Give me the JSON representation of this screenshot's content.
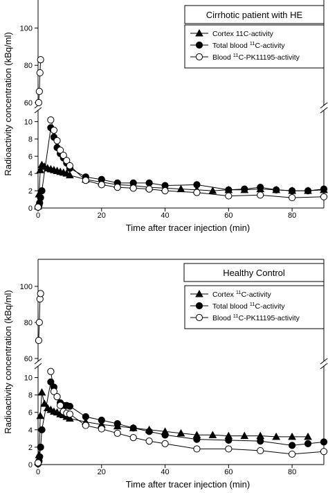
{
  "chart_data": [
    {
      "type": "line",
      "panel_title": "Cirrhotic patient with HE",
      "xlabel": "Time after tracer injection (min)",
      "ylabel": "Radioactivity concentration (kBq/ml)",
      "xlim": [
        0,
        90
      ],
      "x_ticks": [
        0,
        20,
        40,
        60,
        80
      ],
      "y_lower_range": [
        0,
        11
      ],
      "y_lower_ticks": [
        0,
        2,
        4,
        6,
        8,
        10
      ],
      "y_upper_range": [
        60,
        115
      ],
      "y_upper_ticks": [
        60,
        80,
        100
      ],
      "axis_break": true,
      "legend_position": "top-right",
      "series": [
        {
          "name": "Cortex 11C-activity",
          "name_parts": [
            "Cortex 11C-activity"
          ],
          "marker": "triangle-filled",
          "x": [
            0,
            0.3,
            0.7,
            1.2,
            2,
            3,
            4,
            5,
            6,
            7,
            8,
            9,
            10,
            15,
            20,
            25,
            30,
            35,
            40,
            45,
            50,
            55,
            60,
            65,
            70,
            75,
            80,
            85,
            90
          ],
          "y": [
            0.2,
            1.6,
            4.4,
            5.0,
            4.8,
            4.6,
            4.5,
            4.4,
            4.3,
            4.2,
            4.1,
            4.0,
            3.8,
            3.3,
            3.0,
            2.7,
            2.6,
            2.4,
            2.3,
            2.2,
            2.1,
            2.0,
            2.1,
            2.1,
            2.2,
            2.1,
            2.0,
            2.0,
            2.1
          ]
        },
        {
          "name": "Total blood 11C-activity",
          "name_parts": [
            "Total blood ",
            "11",
            "C-activity"
          ],
          "marker": "circle-filled",
          "x": [
            0,
            0.3,
            0.5,
            0.8,
            1.2,
            4,
            5,
            6,
            7,
            8,
            9,
            10,
            15,
            20,
            25,
            30,
            35,
            40,
            50,
            60,
            65,
            70,
            75,
            80,
            85,
            90
          ],
          "y": [
            0.1,
            0.3,
            0.6,
            1.2,
            2.0,
            9.3,
            8.2,
            7.0,
            6.3,
            5.8,
            5.2,
            4.6,
            3.6,
            3.3,
            2.9,
            2.9,
            2.9,
            2.6,
            2.7,
            2.1,
            2.2,
            2.4,
            2.1,
            2.0,
            2.0,
            2.2
          ]
        },
        {
          "name": "Blood 11C-PK11195-activity",
          "name_parts": [
            "Blood ",
            "11",
            "C-PK11195-activity"
          ],
          "marker": "circle-open",
          "x": [
            0,
            0.2,
            0.4,
            0.6,
            0.8,
            4,
            5,
            6,
            7,
            8,
            9,
            10,
            15,
            20,
            25,
            30,
            35,
            40,
            50,
            60,
            70,
            80,
            90
          ],
          "y": [
            0.1,
            60,
            66,
            76,
            83,
            10.2,
            9.0,
            7.8,
            6.7,
            6.1,
            5.5,
            4.9,
            3.2,
            2.7,
            2.4,
            2.3,
            2.2,
            2.0,
            1.8,
            1.4,
            1.5,
            1.2,
            1.3
          ]
        }
      ]
    },
    {
      "type": "line",
      "panel_title": "Healthy Control",
      "xlabel": "Time after tracer injection (min)",
      "ylabel": "Radioactivity concentration (kBq/ml)",
      "xlim": [
        0,
        90
      ],
      "x_ticks": [
        0,
        20,
        40,
        60,
        80
      ],
      "y_lower_range": [
        0,
        11
      ],
      "y_lower_ticks": [
        0,
        2,
        4,
        6,
        8,
        10
      ],
      "y_upper_range": [
        60,
        115
      ],
      "y_upper_ticks": [
        60,
        80,
        100
      ],
      "axis_break": true,
      "legend_position": "top-right",
      "series": [
        {
          "name": "Cortex 11C-activity",
          "name_parts": [
            "Cortex ",
            "11",
            "C-activity"
          ],
          "marker": "triangle-filled",
          "x": [
            0,
            0.3,
            0.7,
            1.2,
            2,
            3,
            4,
            5,
            6,
            7,
            8,
            9,
            10,
            15,
            20,
            25,
            30,
            35,
            40,
            45,
            50,
            55,
            60,
            65,
            70,
            75,
            80,
            85
          ],
          "y": [
            0.3,
            1.1,
            5.6,
            8.3,
            7.0,
            6.5,
            6.3,
            6.1,
            6.0,
            5.8,
            5.7,
            5.5,
            5.3,
            4.9,
            4.6,
            4.4,
            4.2,
            4.0,
            3.8,
            3.6,
            3.4,
            3.4,
            3.3,
            3.3,
            3.3,
            3.2,
            3.2,
            3.2
          ]
        },
        {
          "name": "Total blood 11C-activity",
          "name_parts": [
            "Total blood ",
            "11",
            "C-activity"
          ],
          "marker": "circle-filled",
          "x": [
            0,
            0.3,
            0.5,
            0.8,
            1.2,
            4,
            5,
            6,
            7,
            8,
            9,
            10,
            15,
            20,
            25,
            30,
            35,
            40,
            50,
            60,
            70,
            80,
            85,
            90
          ],
          "y": [
            0.1,
            0.4,
            0.9,
            2.0,
            4.0,
            9.5,
            8.9,
            7.8,
            7.1,
            6.8,
            6.8,
            6.7,
            5.5,
            5.1,
            4.7,
            4.2,
            3.8,
            3.4,
            2.9,
            2.8,
            2.7,
            2.2,
            2.4,
            2.6
          ]
        },
        {
          "name": "Blood 11C-PK11195-activity",
          "name_parts": [
            "Blood ",
            "11",
            "C-PK11195-activity"
          ],
          "marker": "circle-open",
          "x": [
            0,
            0.2,
            0.4,
            0.6,
            0.8,
            4,
            5,
            6,
            7,
            8,
            9,
            10,
            15,
            20,
            25,
            30,
            35,
            40,
            50,
            60,
            70,
            80,
            90
          ],
          "y": [
            0.2,
            70,
            80,
            93,
            96,
            10.7,
            8.4,
            7.8,
            6.8,
            6.1,
            5.9,
            5.8,
            4.5,
            4.1,
            3.6,
            3.1,
            2.7,
            2.4,
            1.8,
            1.8,
            1.6,
            1.2,
            1.5
          ]
        }
      ]
    }
  ]
}
